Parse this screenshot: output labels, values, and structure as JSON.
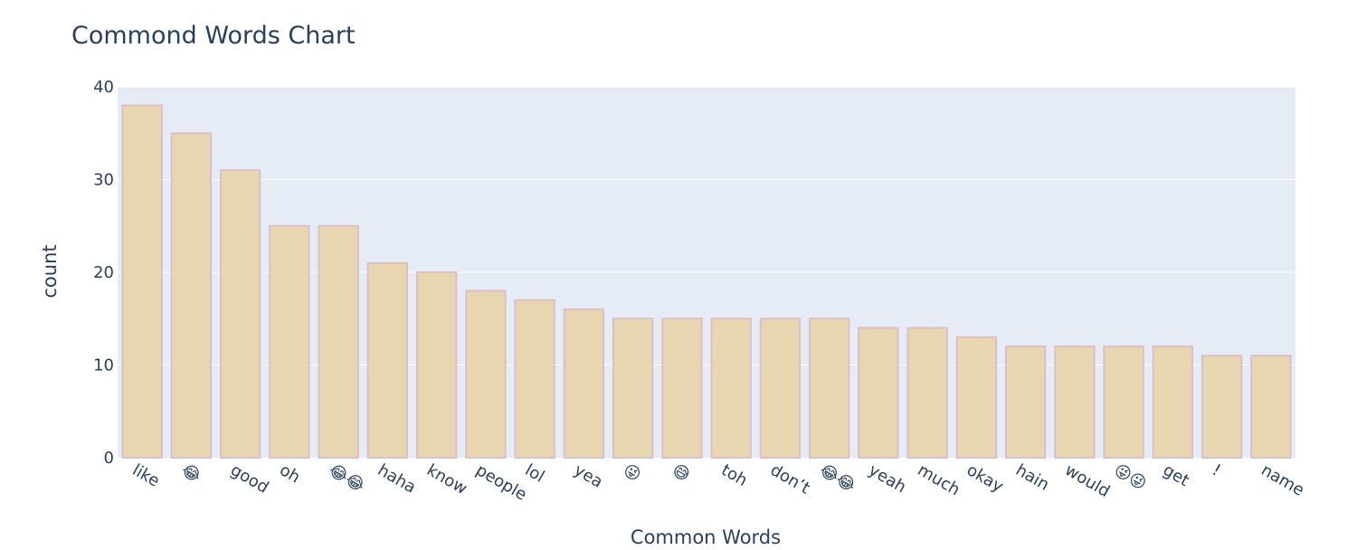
{
  "chart_data": {
    "type": "bar",
    "title": "Commond Words Chart",
    "xlabel": "Common Words",
    "ylabel": "count",
    "categories": [
      "like",
      "😂",
      "good",
      "oh",
      "😂😂",
      "haha",
      "know",
      "people",
      "lol",
      "yea",
      "😜",
      "😅",
      "toh",
      "don’t",
      "😂😂",
      "yeah",
      "much",
      "okay",
      "hain",
      "would",
      "😜😜",
      "get",
      "!",
      "name"
    ],
    "values": [
      38,
      35,
      31,
      25,
      25,
      21,
      20,
      18,
      17,
      16,
      15,
      15,
      15,
      15,
      15,
      14,
      14,
      13,
      12,
      12,
      12,
      12,
      11,
      11
    ],
    "ylim": [
      0,
      40
    ],
    "yticks": [
      0,
      10,
      20,
      30,
      40
    ],
    "grid": true,
    "colors": {
      "bar_fill": "#e8d6b0",
      "bar_stroke": "#dcbfc8",
      "plot_bg": "#e5ecf6",
      "text": "#2a3f5f"
    }
  }
}
